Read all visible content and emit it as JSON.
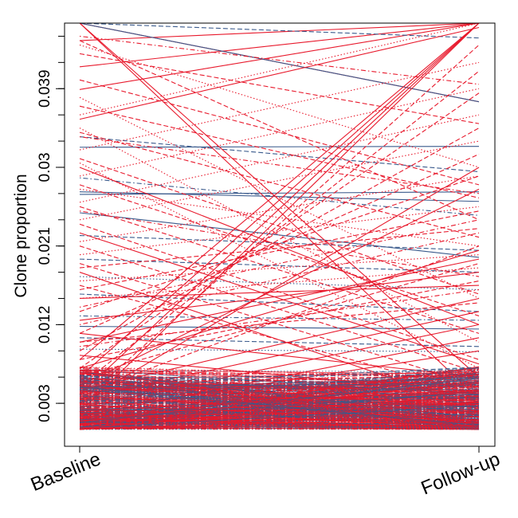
{
  "chart_data": {
    "type": "line",
    "title": "",
    "xlabel": "",
    "ylabel": "Clone proportion",
    "x_categories": [
      "Baseline",
      "Follow-up"
    ],
    "y_ticks": [
      0.003,
      0.012,
      0.021,
      0.03,
      0.039
    ],
    "y_tick_labels": [
      "0.003",
      "0.012",
      "0.021",
      "0.03",
      "0.039"
    ],
    "ylim": [
      0.0,
      0.0465
    ],
    "grid": false,
    "legend": "none",
    "colors": {
      "red": "#e8192c",
      "blue": "#3a5a8c"
    },
    "series": [
      {
        "color": "red",
        "style": "solid",
        "values": [
          0.0445,
          0.0465
        ]
      },
      {
        "color": "red",
        "style": "solid",
        "values": [
          0.0415,
          0.0465
        ]
      },
      {
        "color": "red",
        "style": "solid",
        "values": [
          0.0389,
          0.0465
        ]
      },
      {
        "color": "red",
        "style": "solid",
        "values": [
          0.0465,
          0.0375
        ]
      },
      {
        "color": "blue",
        "style": "solid",
        "values": [
          0.0465,
          0.0375
        ]
      },
      {
        "color": "blue",
        "style": "solid",
        "values": [
          0.0323,
          0.0324
        ]
      },
      {
        "color": "blue",
        "style": "solid",
        "values": [
          0.0272,
          0.0261
        ]
      },
      {
        "color": "blue",
        "style": "solid",
        "values": [
          0.0269,
          0.0272
        ]
      },
      {
        "color": "blue",
        "style": "solid",
        "values": [
          0.0248,
          0.0197
        ]
      },
      {
        "color": "blue",
        "style": "dashed",
        "values": [
          0.0222,
          0.0205
        ]
      },
      {
        "color": "blue",
        "style": "dashed",
        "values": [
          0.0465,
          0.0448
        ]
      },
      {
        "color": "blue",
        "style": "dashed",
        "values": [
          0.0335,
          0.0295
        ]
      },
      {
        "color": "blue",
        "style": "dotdash",
        "values": [
          0.0288,
          0.0245
        ]
      },
      {
        "color": "blue",
        "style": "dashed",
        "values": [
          0.0195,
          0.018
        ]
      },
      {
        "color": "blue",
        "style": "dotted",
        "values": [
          0.0175,
          0.016
        ]
      },
      {
        "color": "blue",
        "style": "dashed",
        "values": [
          0.0155,
          0.0135
        ]
      },
      {
        "color": "blue",
        "style": "dotdash",
        "values": [
          0.013,
          0.0125
        ]
      },
      {
        "color": "blue",
        "style": "solid",
        "values": [
          0.0118,
          0.0115
        ]
      },
      {
        "color": "blue",
        "style": "dashed",
        "values": [
          0.0105,
          0.0095
        ]
      },
      {
        "color": "blue",
        "style": "dotted",
        "values": [
          0.0092,
          0.0089
        ]
      },
      {
        "color": "red",
        "style": "solid",
        "values": [
          0.004,
          0.0465
        ]
      },
      {
        "color": "red",
        "style": "solid",
        "values": [
          0.006,
          0.0465
        ]
      },
      {
        "color": "red",
        "style": "solid",
        "values": [
          0.008,
          0.0465
        ]
      },
      {
        "color": "red",
        "style": "solid",
        "values": [
          0.002,
          0.0465
        ]
      },
      {
        "color": "red",
        "style": "solid",
        "values": [
          0.003,
          0.03
        ]
      },
      {
        "color": "red",
        "style": "solid",
        "values": [
          0.005,
          0.0275
        ]
      },
      {
        "color": "red",
        "style": "solid",
        "values": [
          0.007,
          0.0205
        ]
      },
      {
        "color": "red",
        "style": "solid",
        "values": [
          0.01,
          0.0195
        ]
      },
      {
        "color": "red",
        "style": "solid",
        "values": [
          0.0125,
          0.018
        ]
      },
      {
        "color": "red",
        "style": "solid",
        "values": [
          0.015,
          0.0165
        ]
      },
      {
        "color": "red",
        "style": "solid",
        "values": [
          0.0045,
          0.015
        ]
      },
      {
        "color": "red",
        "style": "solid",
        "values": [
          0.0035,
          0.0135
        ]
      },
      {
        "color": "red",
        "style": "solid",
        "values": [
          0.0025,
          0.012
        ]
      },
      {
        "color": "red",
        "style": "solid",
        "values": [
          0.0015,
          0.0105
        ]
      },
      {
        "color": "red",
        "style": "solid",
        "values": [
          0.002,
          0.009
        ]
      },
      {
        "color": "red",
        "style": "solid",
        "values": [
          0.0465,
          0.006
        ]
      },
      {
        "color": "red",
        "style": "solid",
        "values": [
          0.0465,
          0.0035
        ]
      },
      {
        "color": "red",
        "style": "solid",
        "values": [
          0.03,
          0.012
        ]
      },
      {
        "color": "red",
        "style": "solid",
        "values": [
          0.0225,
          0.0075
        ]
      },
      {
        "color": "red",
        "style": "solid",
        "values": [
          0.018,
          0.0025
        ]
      },
      {
        "color": "red",
        "style": "solid",
        "values": [
          0.0355,
          0.046
        ]
      },
      {
        "color": "red",
        "style": "solid",
        "values": [
          0.011,
          0.006
        ]
      },
      {
        "color": "red",
        "style": "solid",
        "values": [
          0.0085,
          0.004
        ]
      },
      {
        "color": "red",
        "style": "solid",
        "values": [
          0.0065,
          0.002
        ]
      },
      {
        "color": "red",
        "style": "solid",
        "values": [
          0.0055,
          0.0045
        ]
      },
      {
        "color": "red",
        "style": "dashed",
        "values": [
          0.0445,
          0.024
        ]
      },
      {
        "color": "red",
        "style": "dashed",
        "values": [
          0.043,
          0.035
        ]
      },
      {
        "color": "red",
        "style": "dashed",
        "values": [
          0.04,
          0.028
        ]
      },
      {
        "color": "red",
        "style": "dashed",
        "values": [
          0.037,
          0.0265
        ]
      },
      {
        "color": "red",
        "style": "dashed",
        "values": [
          0.034,
          0.022
        ]
      },
      {
        "color": "red",
        "style": "dashed",
        "values": [
          0.031,
          0.0155
        ]
      },
      {
        "color": "red",
        "style": "dashed",
        "values": [
          0.028,
          0.013
        ]
      },
      {
        "color": "red",
        "style": "dashed",
        "values": [
          0.0255,
          0.011
        ]
      },
      {
        "color": "red",
        "style": "dashed",
        "values": [
          0.0235,
          0.008
        ]
      },
      {
        "color": "red",
        "style": "dashed",
        "values": [
          0.021,
          0.0065
        ]
      },
      {
        "color": "red",
        "style": "dashed",
        "values": [
          0.019,
          0.005
        ]
      },
      {
        "color": "red",
        "style": "dashed",
        "values": [
          0.0165,
          0.004
        ]
      },
      {
        "color": "red",
        "style": "dashed",
        "values": [
          0.003,
          0.044
        ]
      },
      {
        "color": "red",
        "style": "dashed",
        "values": [
          0.005,
          0.041
        ]
      },
      {
        "color": "red",
        "style": "dashed",
        "values": [
          0.007,
          0.0385
        ]
      },
      {
        "color": "red",
        "style": "dashed",
        "values": [
          0.009,
          0.0345
        ]
      },
      {
        "color": "red",
        "style": "dashed",
        "values": [
          0.011,
          0.0315
        ]
      },
      {
        "color": "red",
        "style": "dashed",
        "values": [
          0.0135,
          0.029
        ]
      },
      {
        "color": "red",
        "style": "dashed",
        "values": [
          0.016,
          0.025
        ]
      },
      {
        "color": "red",
        "style": "dashed",
        "values": [
          0.0185,
          0.023
        ]
      },
      {
        "color": "red",
        "style": "dashed",
        "values": [
          0.004,
          0.021
        ]
      },
      {
        "color": "red",
        "style": "dashed",
        "values": [
          0.006,
          0.019
        ]
      },
      {
        "color": "red",
        "style": "dashed",
        "values": [
          0.008,
          0.017
        ]
      },
      {
        "color": "red",
        "style": "dashed",
        "values": [
          0.01,
          0.0145
        ]
      },
      {
        "color": "red",
        "style": "dotted",
        "values": [
          0.044,
          0.03
        ]
      },
      {
        "color": "red",
        "style": "dotted",
        "values": [
          0.036,
          0.0465
        ]
      },
      {
        "color": "red",
        "style": "dotted",
        "values": [
          0.032,
          0.042
        ]
      },
      {
        "color": "red",
        "style": "dotted",
        "values": [
          0.029,
          0.039
        ]
      },
      {
        "color": "red",
        "style": "dotted",
        "values": [
          0.026,
          0.036
        ]
      },
      {
        "color": "red",
        "style": "dotted",
        "values": [
          0.024,
          0.033
        ]
      },
      {
        "color": "red",
        "style": "dotted",
        "values": [
          0.0215,
          0.029
        ]
      },
      {
        "color": "red",
        "style": "dotted",
        "values": [
          0.02,
          0.0255
        ]
      },
      {
        "color": "red",
        "style": "dotted",
        "values": [
          0.017,
          0.02
        ]
      },
      {
        "color": "red",
        "style": "dotted",
        "values": [
          0.015,
          0.0185
        ]
      },
      {
        "color": "red",
        "style": "dotted",
        "values": [
          0.038,
          0.015
        ]
      },
      {
        "color": "red",
        "style": "dotted",
        "values": [
          0.0345,
          0.01
        ]
      },
      {
        "color": "red",
        "style": "dotted",
        "values": [
          0.0305,
          0.007
        ]
      },
      {
        "color": "red",
        "style": "dotted",
        "values": [
          0.0275,
          0.021
        ]
      },
      {
        "color": "red",
        "style": "dotdash",
        "values": [
          0.045,
          0.0395
        ]
      },
      {
        "color": "red",
        "style": "dotdash",
        "values": [
          0.0335,
          0.027
        ]
      },
      {
        "color": "red",
        "style": "dotdash",
        "values": [
          0.025,
          0.0175
        ]
      },
      {
        "color": "red",
        "style": "dotdash",
        "values": [
          0.014,
          0.024
        ]
      },
      {
        "color": "red",
        "style": "dotdash",
        "values": [
          0.012,
          0.0225
        ]
      },
      {
        "color": "red",
        "style": "dotdash",
        "values": [
          0.0095,
          0.016
        ]
      }
    ]
  }
}
